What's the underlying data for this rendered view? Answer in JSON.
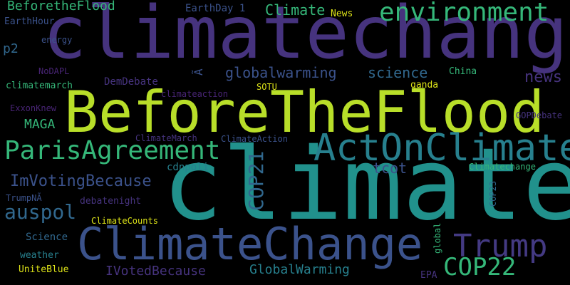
{
  "words": {
    "climatechange": "climatechange",
    "climate": "climate",
    "beforetheflood_big": "BeforeTheFlood",
    "climatechange_cap": "ClimateChange",
    "actonclimate": "ActOnClimate",
    "parisagreement": "ParisAgreement",
    "trump": "Trump",
    "environment": "environment",
    "cop22": "COP22",
    "cop21": "COP21",
    "auspol": "auspol",
    "globalwarming": "globalwarming",
    "science": "science",
    "news": "news",
    "imvotingbecause": "ImVotingBecause",
    "beforetheflood_small": "BeforetheFlood",
    "climate_cap": "Climate",
    "maga": "MAGA",
    "tcot": "tcot",
    "globalwarming_cap": "GlobalWarming",
    "ivotedbecause": "IVotedBecause",
    "p2": "p2",
    "earthday": "EarthDay 1",
    "earthhour": "EarthHour",
    "news_cap": "News",
    "energy": "energy",
    "nodapl": "NoDAPL",
    "climatemarch": "climatemarch",
    "demdebate": "DemDebate",
    "a_glyph": "Ã",
    "sotu": "SOTU",
    "qanda": "qanda",
    "china": "China",
    "climateaction": "climateaction",
    "exxonknew": "ExxonKnew",
    "gopdebate": "GOPDebate",
    "climatemarch_cap": "ClimateMarch",
    "climateaction_cap": "ClimateAction",
    "cdnpoli": "cdnpoli",
    "climatechange_title": "Climatechange",
    "trumpn": "TrumpNÃ",
    "debatenight": "debatenight",
    "cop23": "COP23",
    "climatecounts": "ClimateCounts",
    "science_cap": "Science",
    "global": "global",
    "weather": "weather",
    "uniteblue": "UniteBlue",
    "epa": "EPA"
  },
  "colors": {
    "background": "#000000",
    "purple": "#443a83",
    "indigo": "#3b528b",
    "blue": "#31688e",
    "teal": "#21918c",
    "green": "#35b779",
    "lime": "#b8de29",
    "yellow": "#dde318"
  }
}
